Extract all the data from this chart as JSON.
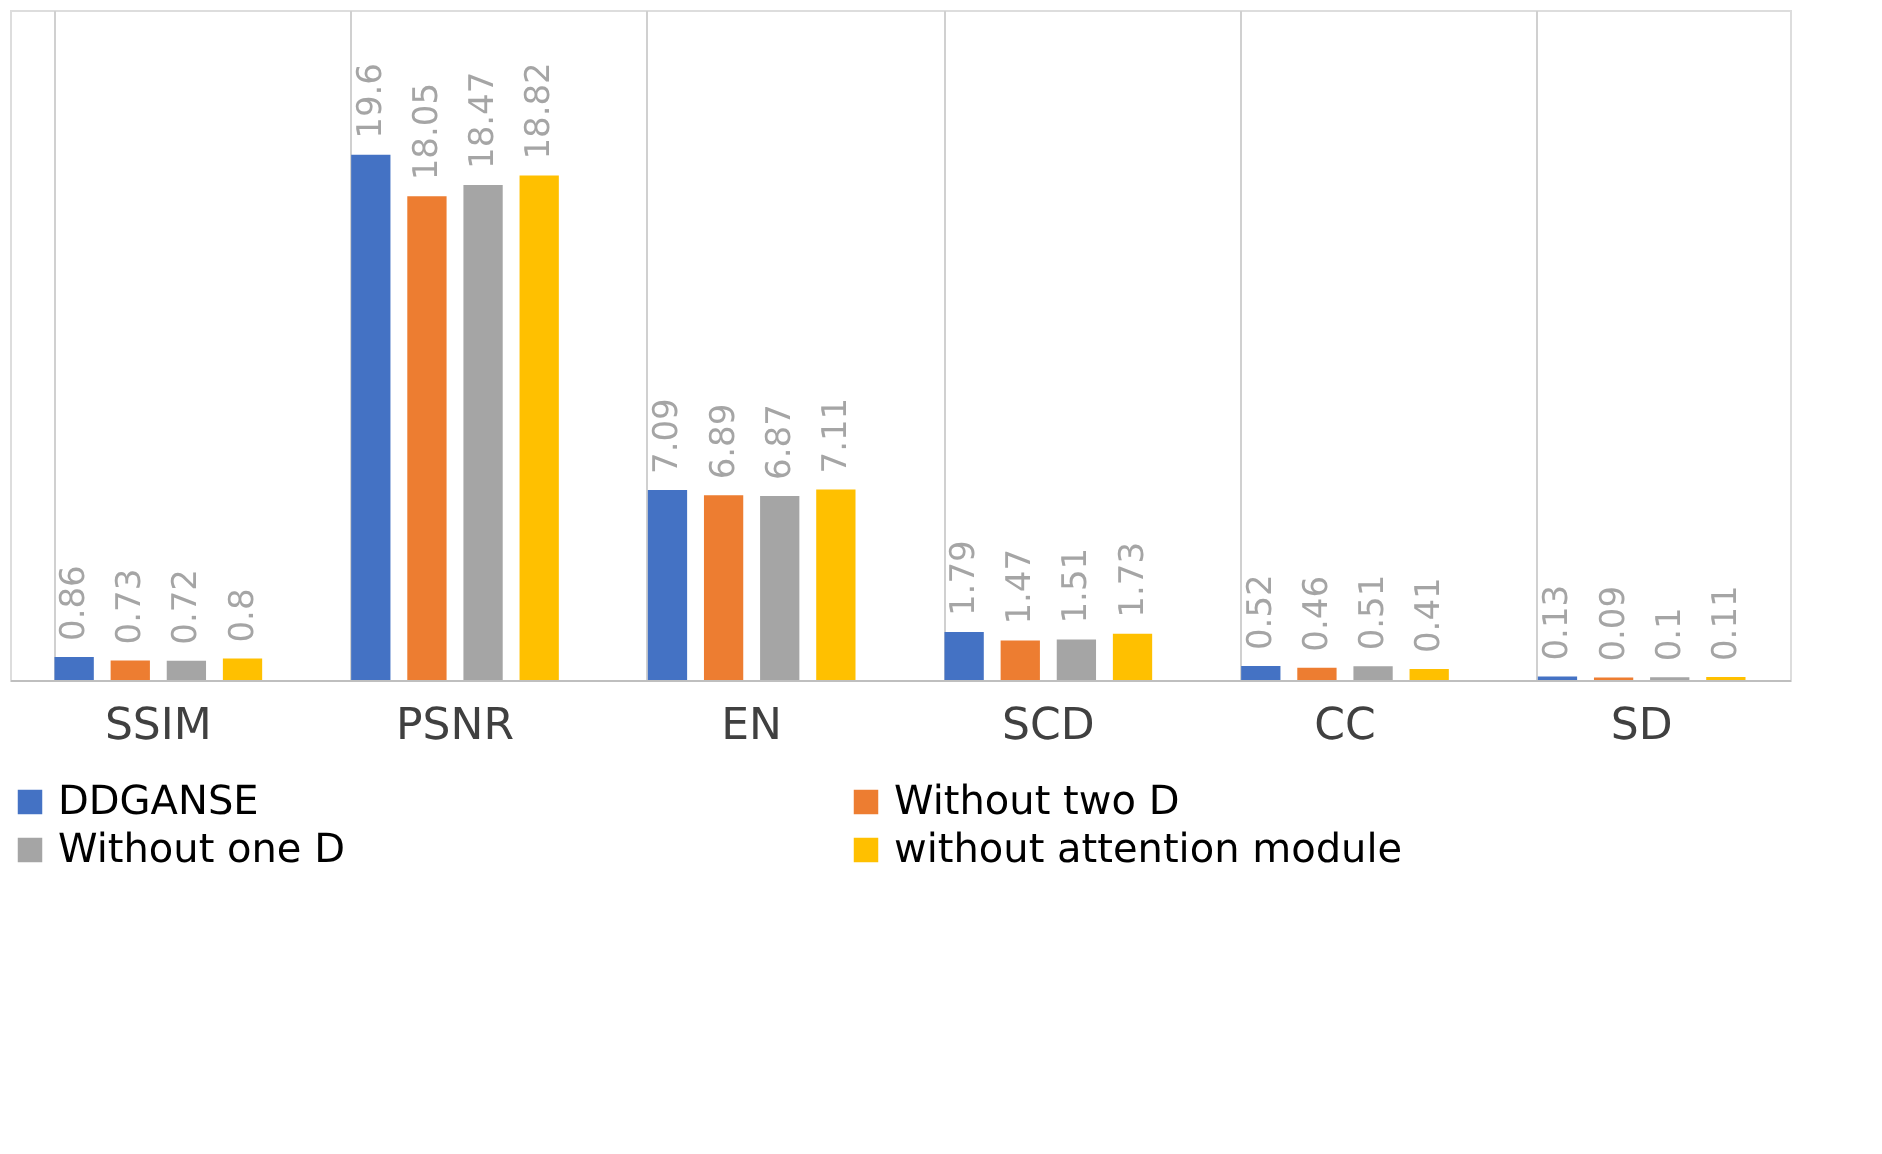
{
  "chart_data": {
    "type": "bar",
    "categories": [
      "SSIM",
      "PSNR",
      "EN",
      "SCD",
      "CC",
      "SD"
    ],
    "series": [
      {
        "name": "DDGANSE",
        "color": "#4472c4",
        "values": [
          0.86,
          19.6,
          7.09,
          1.79,
          0.52,
          0.13
        ]
      },
      {
        "name": "Without two D",
        "color": "#ed7d31",
        "values": [
          0.73,
          18.05,
          6.89,
          1.47,
          0.46,
          0.09
        ]
      },
      {
        "name": "Without one D",
        "color": "#a5a5a5",
        "values": [
          0.72,
          18.47,
          6.87,
          1.51,
          0.51,
          0.1
        ]
      },
      {
        "name": "without attention module",
        "color": "#ffc000",
        "values": [
          0.8,
          18.82,
          7.11,
          1.73,
          0.41,
          0.11
        ]
      }
    ],
    "ylim": [
      0,
      25
    ],
    "data_labels": true,
    "grid": "x",
    "legend": "bottom",
    "tick_labels": "x"
  }
}
